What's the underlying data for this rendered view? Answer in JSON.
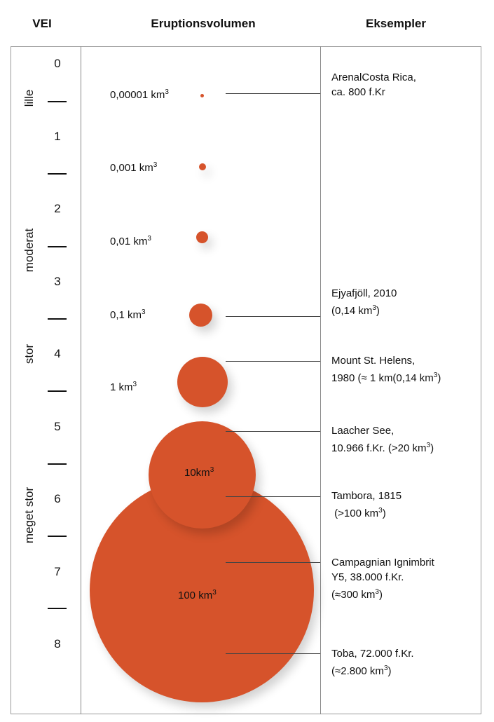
{
  "headers": {
    "vei": "VEI",
    "volume": "Eruptionsvolumen",
    "examples": "Eksempler"
  },
  "vei_levels": [
    "0",
    "1",
    "2",
    "3",
    "4",
    "5",
    "6",
    "7",
    "8"
  ],
  "categories": [
    "lille",
    "moderat",
    "stor",
    "meget stor"
  ],
  "volumes": [
    {
      "value": "0,00001 km",
      "sup": "3"
    },
    {
      "value": "0,001 km",
      "sup": "3"
    },
    {
      "value": "0,01 km",
      "sup": "3"
    },
    {
      "value": "0,1 km",
      "sup": "3"
    },
    {
      "value": "1 km",
      "sup": "3"
    },
    {
      "value": "10km",
      "sup": "3"
    },
    {
      "value": "100 km",
      "sup": "3"
    }
  ],
  "examples": [
    {
      "line1": "ArenalCosta Rica,",
      "line2": "ca. 800 f.Kr",
      "line3": "",
      "sup": "",
      "tail": ""
    },
    {
      "line1": "Ejyafjöll, 2010",
      "line2": "(0,14 km",
      "line3": "",
      "sup": "3",
      "tail": ")"
    },
    {
      "line1": "Mount St. Helens,",
      "line2": "1980 (≈ 1 km(0,14 km",
      "line3": "",
      "sup": "3",
      "tail": ")"
    },
    {
      "line1": "Laacher See,",
      "line2": "10.966 f.Kr. (>20 km",
      "line3": "",
      "sup": "3",
      "tail": ")"
    },
    {
      "line1": "Tambora, 1815",
      "line2": " (>100 km",
      "line3": "",
      "sup": "3",
      "tail": ")"
    },
    {
      "line1": "Campagnian Ignimbrit",
      "line2": "Y5, 38.000 f.Kr.",
      "line3": "(≈300 km",
      "sup": "3",
      "tail": ")"
    },
    {
      "line1": "Toba, 72.000 f.Kr.",
      "line2": "(≈2.800 km",
      "line3": "",
      "sup": "3",
      "tail": ")"
    }
  ],
  "colors": {
    "eruption": "#d6532b"
  }
}
